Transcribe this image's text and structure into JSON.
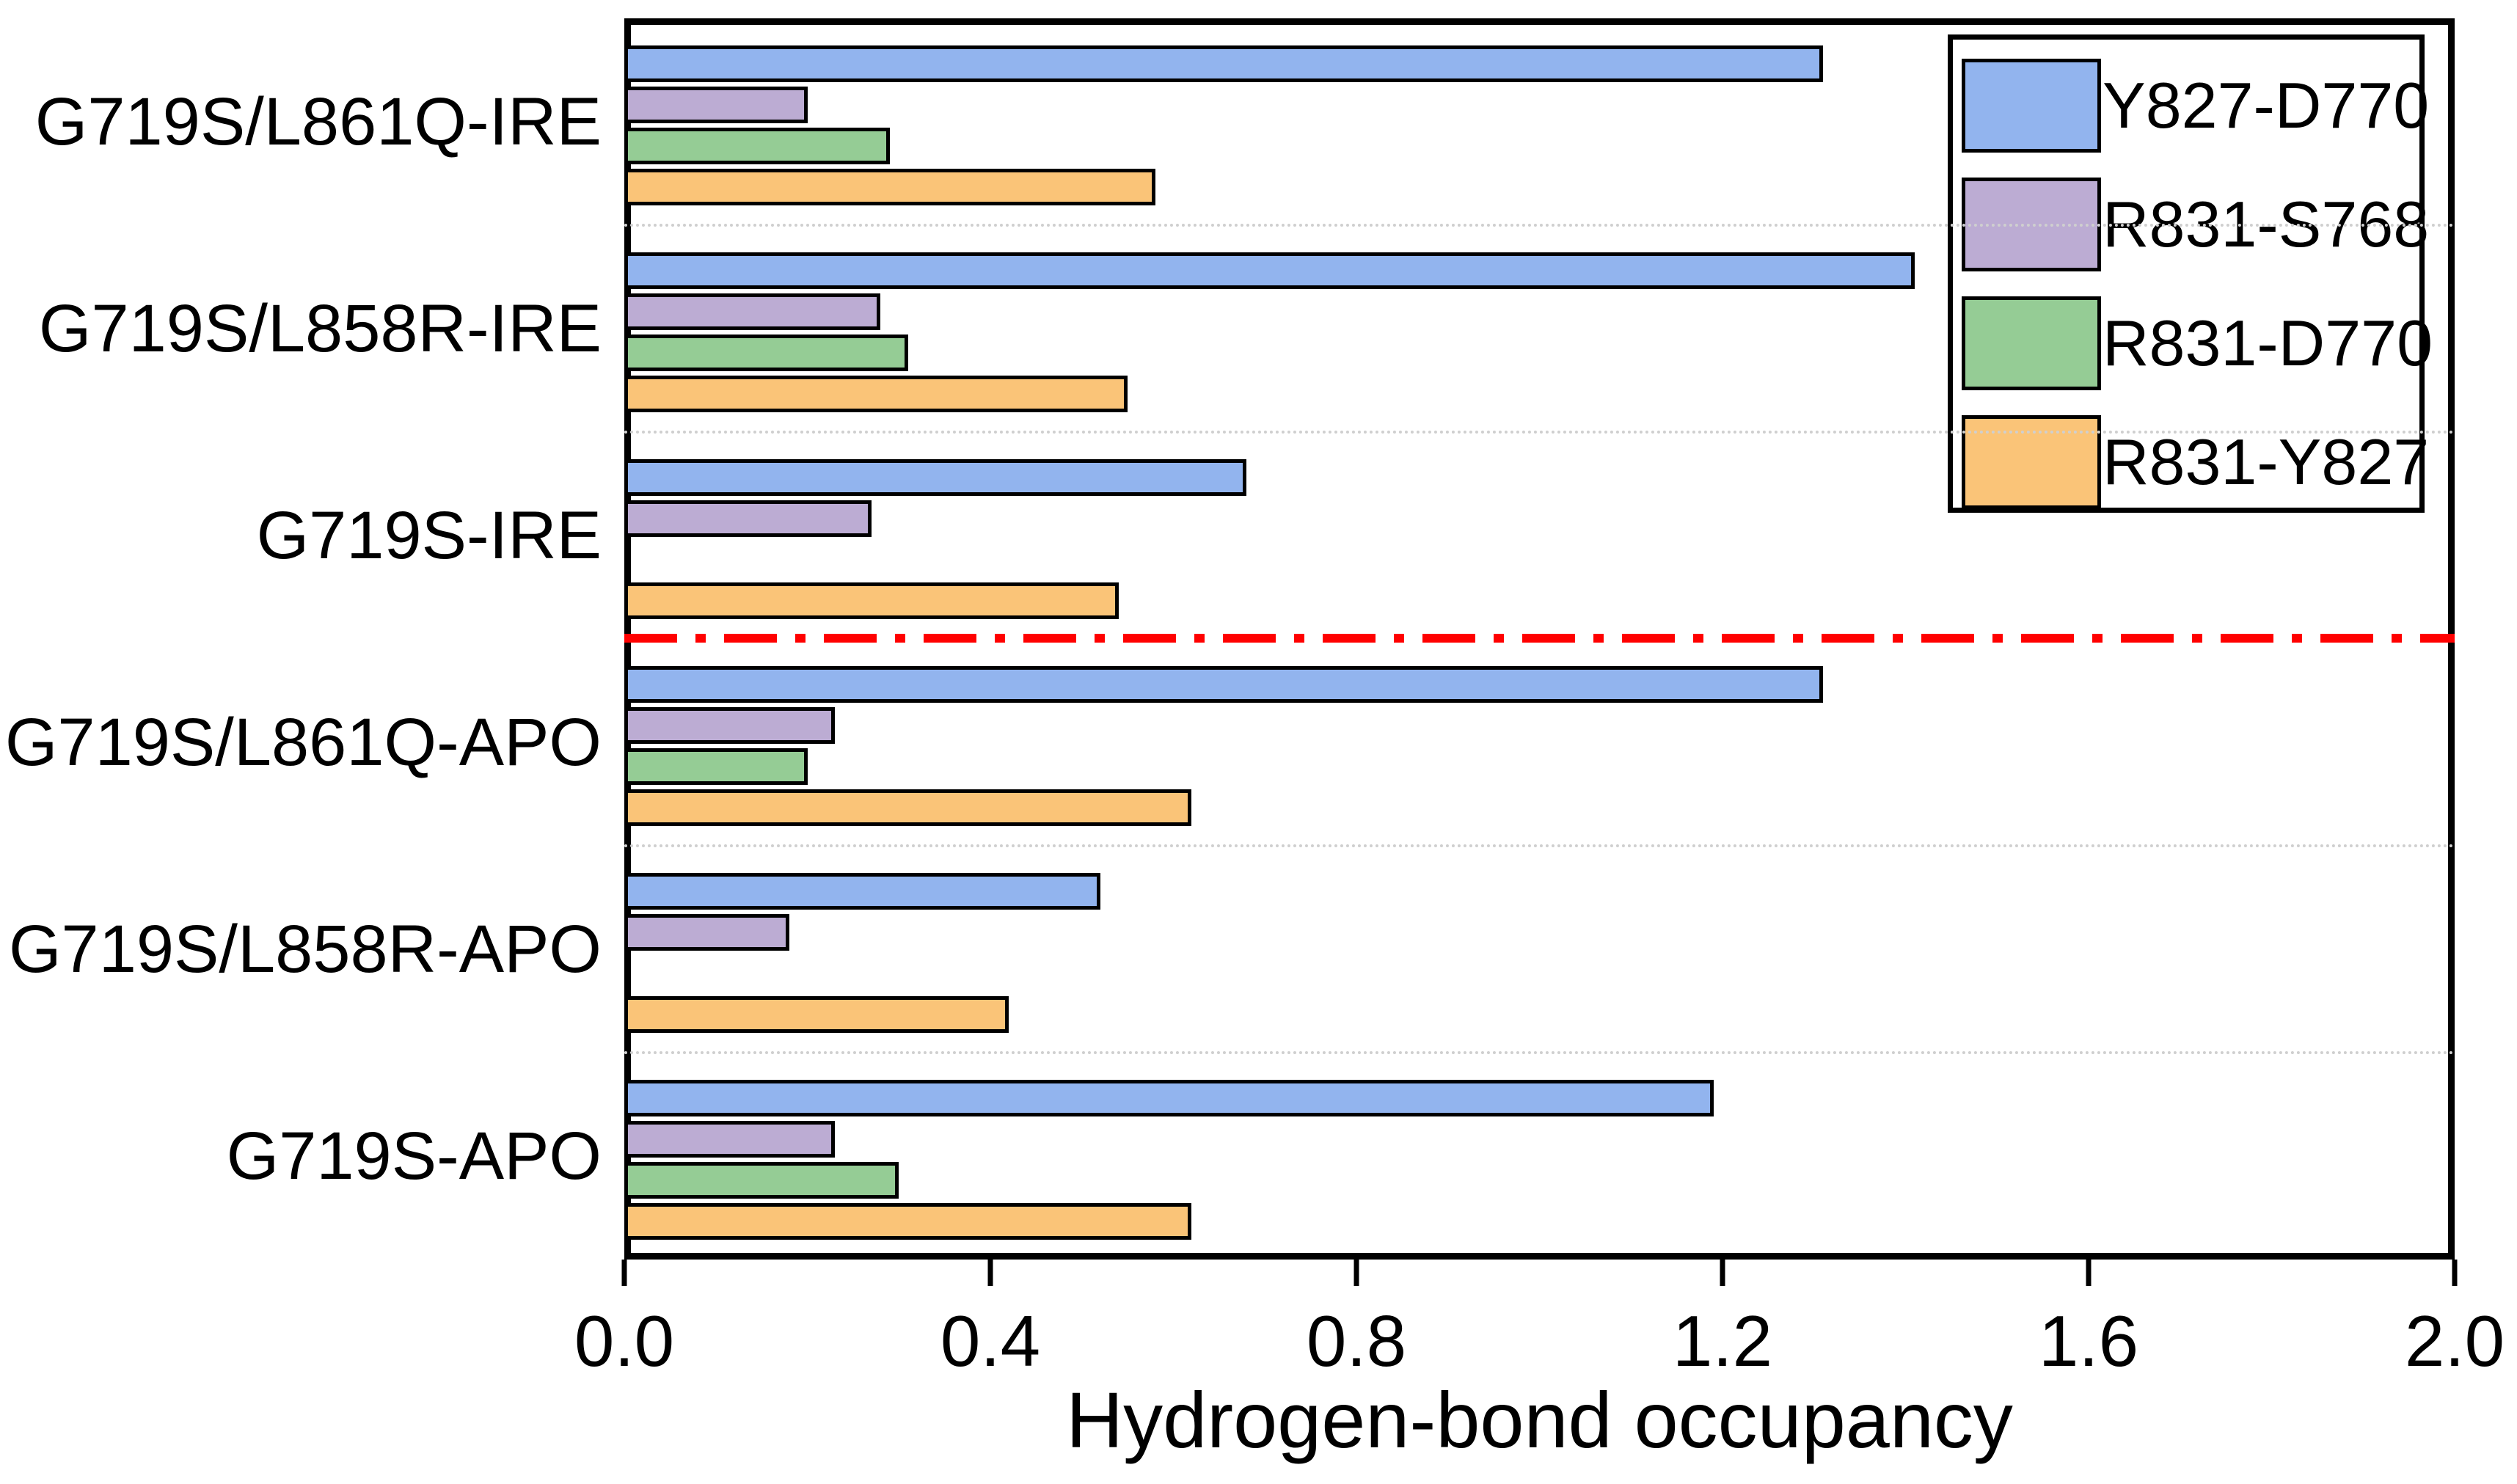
{
  "chart_data": {
    "type": "bar",
    "orientation": "horizontal",
    "xlabel": "Hydrogen-bond occupancy",
    "xlim": [
      0.0,
      2.0
    ],
    "xticks": [
      "0.0",
      "0.4",
      "0.8",
      "1.2",
      "1.6",
      "2.0"
    ],
    "grid": "dotted gray separators between category groups",
    "legend_position": "top-right inside plot",
    "categories": [
      "G719S/L861Q-IRE",
      "G719S/L858R-IRE",
      "G719S-IRE",
      "G719S/L861Q-APO",
      "G719S/L858R-APO",
      "G719S-APO"
    ],
    "series": [
      {
        "name": "Y827-D770",
        "color": "#92B4EE",
        "values": [
          1.31,
          1.41,
          0.68,
          1.31,
          0.52,
          1.19
        ]
      },
      {
        "name": "R831-S768",
        "color": "#BCACD3",
        "values": [
          0.2,
          0.28,
          0.27,
          0.23,
          0.18,
          0.23
        ]
      },
      {
        "name": "R831-D770",
        "color": "#95CC95",
        "values": [
          0.29,
          0.31,
          0.0,
          0.2,
          0.0,
          0.3
        ]
      },
      {
        "name": "R831-Y827",
        "color": "#FAC478",
        "values": [
          0.58,
          0.55,
          0.54,
          0.62,
          0.42,
          0.62
        ]
      }
    ],
    "divider": {
      "description": "red dash-dot horizontal line separating IRE groups (top) from APO groups (bottom)",
      "color": "#FF0000",
      "after_category_index": 2
    },
    "bar_outline_color": "#000000",
    "frame_color": "#000000"
  }
}
